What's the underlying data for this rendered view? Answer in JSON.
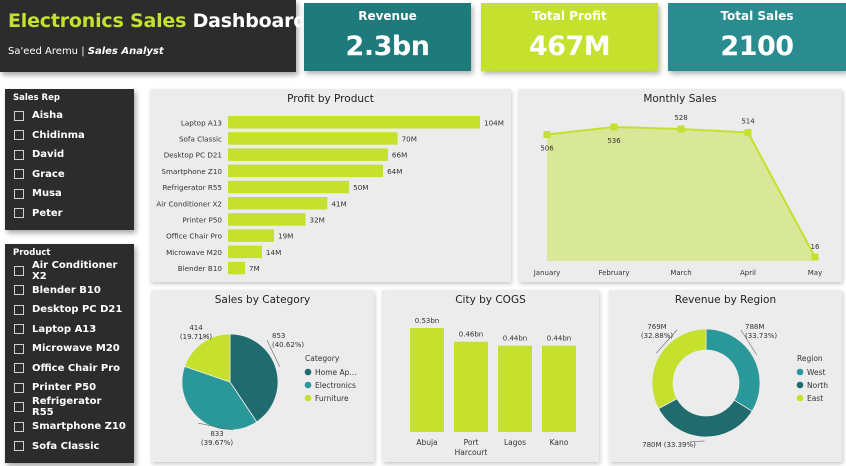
{
  "title": {
    "accent": "Electronics Sales",
    "rest": "Dashboard",
    "author": "Sa'eed Aremu",
    "role": "Sales Analyst"
  },
  "kpis": {
    "revenue": {
      "label": "Revenue",
      "value": "2.3bn"
    },
    "profit": {
      "label": "Total Profit",
      "value": "467M"
    },
    "sales": {
      "label": "Total Sales",
      "value": "2100"
    }
  },
  "slicers": {
    "sales_rep": {
      "label": "Sales Rep",
      "items": [
        "Aisha",
        "Chidinma",
        "David",
        "Grace",
        "Musa",
        "Peter"
      ]
    },
    "product": {
      "label": "Product",
      "items": [
        "Air Conditioner X2",
        "Blender B10",
        "Desktop PC D21",
        "Laptop A13",
        "Microwave M20",
        "Office Chair Pro",
        "Printer P50",
        "Refrigerator R55",
        "Smartphone Z10",
        "Sofa Classic"
      ]
    }
  },
  "colors": {
    "lime": "#c5e02d",
    "teal": "#2a8c8e",
    "dark_teal": "#1f6b6d",
    "dark": "#2c2c2c"
  },
  "chart_data": [
    {
      "id": "profit",
      "type": "bar",
      "orientation": "horizontal",
      "title": "Profit by Product",
      "categories": [
        "Laptop A13",
        "Sofa Classic",
        "Desktop PC D21",
        "Smartphone Z10",
        "Refrigerator R55",
        "Air Conditioner X2",
        "Printer P50",
        "Office Chair Pro",
        "Microwave M20",
        "Blender B10"
      ],
      "values": [
        104,
        70,
        66,
        64,
        50,
        41,
        32,
        19,
        14,
        7
      ],
      "labels": [
        "104M",
        "70M",
        "66M",
        "64M",
        "50M",
        "41M",
        "32M",
        "19M",
        "14M",
        "7M"
      ],
      "unit": "M"
    },
    {
      "id": "monthly",
      "type": "area",
      "title": "Monthly Sales",
      "categories": [
        "January",
        "February",
        "March",
        "April",
        "May"
      ],
      "values": [
        506,
        536,
        528,
        514,
        16
      ],
      "labels": [
        "506",
        "536",
        "528",
        "514",
        "16"
      ],
      "ylim": [
        0,
        600
      ]
    },
    {
      "id": "category",
      "type": "pie",
      "title": "Sales by Category",
      "legend_title": "Category",
      "legend": "right",
      "slices": [
        {
          "name": "Home Ap...",
          "value": 853,
          "label": "853",
          "pct": "(40.62%)",
          "color": "#1f6b6d"
        },
        {
          "name": "Electronics",
          "value": 833,
          "label": "833",
          "pct": "(39.67%)",
          "color": "#2a9799"
        },
        {
          "name": "Furniture",
          "value": 414,
          "label": "414",
          "pct": "(19.71%)",
          "color": "#c5e02d"
        }
      ]
    },
    {
      "id": "city",
      "type": "bar",
      "title": "City by COGS",
      "categories": [
        "Abuja",
        "Port Harcourt",
        "Lagos",
        "Kano"
      ],
      "values": [
        0.53,
        0.46,
        0.44,
        0.44
      ],
      "labels": [
        "0.53bn",
        "0.46bn",
        "0.44bn",
        "0.44bn"
      ],
      "unit": "bn"
    },
    {
      "id": "region",
      "type": "pie",
      "donut": true,
      "title": "Revenue by Region",
      "legend_title": "Region",
      "legend": "right",
      "slices": [
        {
          "name": "West",
          "value": 33.73,
          "label": "788M",
          "pct": "(33.73%)",
          "color": "#2a9799"
        },
        {
          "name": "North",
          "value": 33.39,
          "label": "780M (33.39%)",
          "pct": "",
          "color": "#1f6b6d"
        },
        {
          "name": "East",
          "value": 32.88,
          "label": "769M",
          "pct": "(32.88%)",
          "color": "#c5e02d"
        }
      ]
    }
  ]
}
